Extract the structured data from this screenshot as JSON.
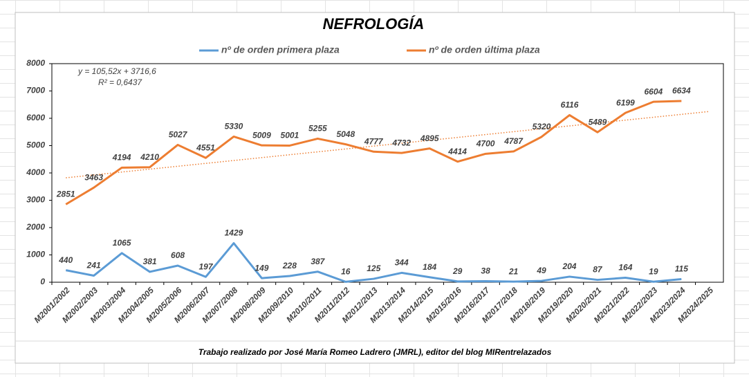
{
  "chart_data": {
    "type": "line",
    "title": "NEFROLOGÍA",
    "categories": [
      "M2001/2002",
      "M2002/2003",
      "M2003/2004",
      "M2004/2005",
      "M2005/2006",
      "M2006/2007",
      "M2007/2008",
      "M2008/2009",
      "M2009/2010",
      "M2010/2011",
      "M2011/2012",
      "M2012/2013",
      "M2013/2014",
      "M2014/2015",
      "M2015/2016",
      "M2016/2017",
      "M2017/2018",
      "M2018/2019",
      "M2019/2020",
      "M2020/2021",
      "M2021/2022",
      "M2022/2023",
      "M2023/2024",
      "M2024/2025"
    ],
    "series": [
      {
        "name": "nº de orden primera plaza",
        "color": "#5b9bd5",
        "values": [
          440,
          241,
          1065,
          381,
          608,
          197,
          1429,
          149,
          228,
          387,
          16,
          125,
          344,
          184,
          29,
          38,
          21,
          49,
          204,
          87,
          164,
          19,
          115,
          null
        ]
      },
      {
        "name": "nº de orden última plaza",
        "color": "#ed7d31",
        "values": [
          2851,
          3463,
          4194,
          4210,
          5027,
          4551,
          5330,
          5009,
          5001,
          5255,
          5048,
          4777,
          4732,
          4895,
          4414,
          4700,
          4787,
          5320,
          6116,
          5489,
          6199,
          6604,
          6634,
          null
        ]
      }
    ],
    "trendline": {
      "series": 1,
      "slope": 105.52,
      "intercept": 3716.6,
      "label": "y = 105,52x  + 3716,6",
      "r2_label": "R² = 0,6437"
    },
    "ylim": [
      0,
      8000
    ],
    "yticks": [
      0,
      1000,
      2000,
      3000,
      4000,
      5000,
      6000,
      7000,
      8000
    ],
    "grid": false,
    "legend": "top",
    "footer": "Trabajo realizado por José María Romeo Ladrero (JMRL), editor del blog MIRentrelazados"
  }
}
